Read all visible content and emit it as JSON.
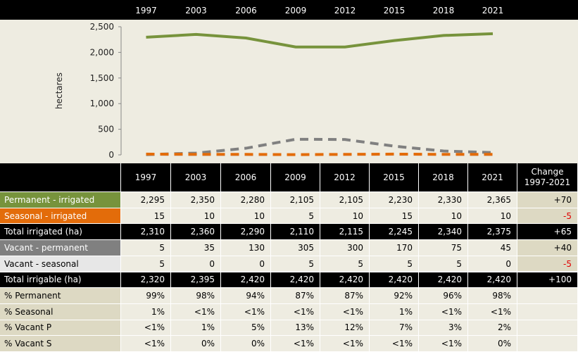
{
  "chart_data": {
    "type": "line",
    "y_label": "hectares",
    "categories": [
      "1997",
      "2003",
      "2006",
      "2009",
      "2012",
      "2015",
      "2018",
      "2021"
    ],
    "ylim": [
      0,
      2500
    ],
    "yticks": [
      0,
      500,
      {
        "value": 1000,
        "label": "1,000"
      },
      {
        "value": 1500,
        "label": "1,500"
      },
      {
        "value": 2000,
        "label": "2,000"
      },
      {
        "value": 2500,
        "label": "2,500"
      }
    ],
    "series": [
      {
        "name": "Permanent - irrigated",
        "color": "#77933c",
        "dashed": false,
        "values": [
          2295,
          2350,
          2280,
          2105,
          2105,
          2230,
          2330,
          2365
        ]
      },
      {
        "name": "Seasonal - irrigated",
        "color": "#e36c0a",
        "dashed": true,
        "values": [
          15,
          10,
          10,
          5,
          10,
          15,
          10,
          10
        ]
      },
      {
        "name": "Vacant - permanent",
        "color": "#808080",
        "dashed": true,
        "values": [
          5,
          35,
          130,
          305,
          300,
          170,
          75,
          45
        ]
      },
      {
        "name": "Vacant - seasonal",
        "color": "#d9d9d9",
        "dashed": true,
        "values": [
          5,
          0,
          0,
          5,
          5,
          5,
          5,
          0
        ]
      }
    ]
  },
  "table": {
    "header": [
      "1997",
      "2003",
      "2006",
      "2009",
      "2012",
      "2015",
      "2018",
      "2021"
    ],
    "change_header": "Change 1997-2021",
    "rows": [
      {
        "label": "Permanent - irrigated",
        "label_bg": "#77933c",
        "label_color": "#ffffff",
        "row_bg": "#eeece1",
        "row_color": "#000000",
        "cells": [
          "2,295",
          "2,350",
          "2,280",
          "2,105",
          "2,105",
          "2,230",
          "2,330",
          "2,365"
        ],
        "change": "+70",
        "change_color": "#000000"
      },
      {
        "label": "Seasonal - irrigated",
        "label_bg": "#e36c0a",
        "label_color": "#ffffff",
        "row_bg": "#eeece1",
        "row_color": "#000000",
        "cells": [
          "15",
          "10",
          "10",
          "5",
          "10",
          "15",
          "10",
          "10"
        ],
        "change": "-5",
        "change_color": "#e00000"
      },
      {
        "label": "Total irrigated (ha)",
        "label_bg": "#000000",
        "label_color": "#ffffff",
        "row_bg": "#000000",
        "row_color": "#ffffff",
        "cells": [
          "2,310",
          "2,360",
          "2,290",
          "2,110",
          "2,115",
          "2,245",
          "2,340",
          "2,375"
        ],
        "change": "+65",
        "change_color": "#ffffff"
      },
      {
        "label": "Vacant - permanent",
        "label_bg": "#808080",
        "label_color": "#ffffff",
        "row_bg": "#eeece1",
        "row_color": "#000000",
        "cells": [
          "5",
          "35",
          "130",
          "305",
          "300",
          "170",
          "75",
          "45"
        ],
        "change": "+40",
        "change_color": "#000000"
      },
      {
        "label": "Vacant - seasonal",
        "label_bg": "#e7e7e7",
        "label_color": "#000000",
        "row_bg": "#eeece1",
        "row_color": "#000000",
        "cells": [
          "5",
          "0",
          "0",
          "5",
          "5",
          "5",
          "5",
          "0"
        ],
        "change": "-5",
        "change_color": "#e00000"
      },
      {
        "label": "Total irrigable (ha)",
        "label_bg": "#000000",
        "label_color": "#ffffff",
        "row_bg": "#000000",
        "row_color": "#ffffff",
        "cells": [
          "2,320",
          "2,395",
          "2,420",
          "2,420",
          "2,420",
          "2,420",
          "2,420",
          "2,420"
        ],
        "change": "+100",
        "change_color": "#ffffff"
      },
      {
        "label": "% Permanent",
        "label_bg": "#ddd9c3",
        "label_color": "#000000",
        "row_bg": "#eeece1",
        "row_color": "#000000",
        "cells": [
          "99%",
          "98%",
          "94%",
          "87%",
          "87%",
          "92%",
          "96%",
          "98%"
        ]
      },
      {
        "label": "% Seasonal",
        "label_bg": "#ddd9c3",
        "label_color": "#000000",
        "row_bg": "#eeece1",
        "row_color": "#000000",
        "cells": [
          "1%",
          "<1%",
          "<1%",
          "<1%",
          "<1%",
          "1%",
          "<1%",
          "<1%"
        ]
      },
      {
        "label": "% Vacant P",
        "label_bg": "#ddd9c3",
        "label_color": "#000000",
        "row_bg": "#eeece1",
        "row_color": "#000000",
        "cells": [
          "<1%",
          "1%",
          "5%",
          "13%",
          "12%",
          "7%",
          "3%",
          "2%"
        ]
      },
      {
        "label": "% Vacant S",
        "label_bg": "#ddd9c3",
        "label_color": "#000000",
        "row_bg": "#eeece1",
        "row_color": "#000000",
        "cells": [
          "<1%",
          "0%",
          "0%",
          "<1%",
          "<1%",
          "<1%",
          "<1%",
          "0%"
        ]
      }
    ]
  }
}
